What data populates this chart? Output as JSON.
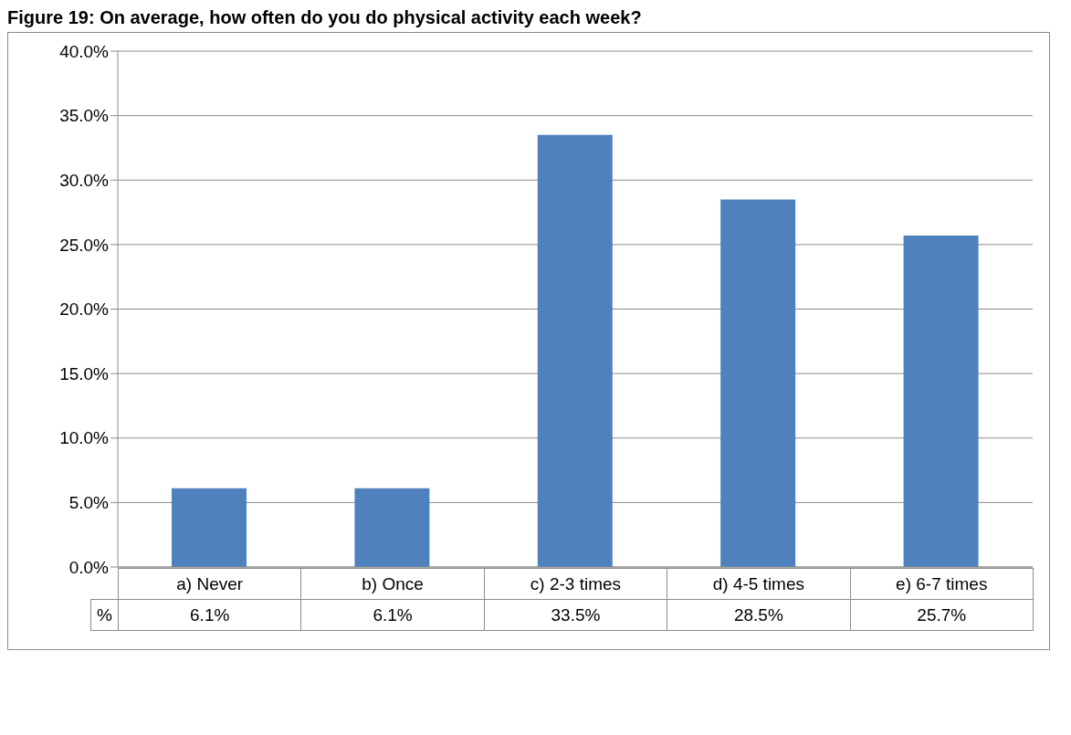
{
  "chart_data": {
    "type": "bar",
    "title": "Figure 19: On average, how often do you do physical activity each week?",
    "categories": [
      "a) Never",
      "b) Once",
      "c) 2-3 times",
      "d) 4-5 times",
      "e) 6-7 times"
    ],
    "series": [
      {
        "name": "%",
        "color": "#4f81bd",
        "values": [
          6.1,
          6.1,
          33.5,
          28.5,
          25.7
        ],
        "value_labels": [
          "6.1%",
          "6.1%",
          "33.5%",
          "28.5%",
          "25.7%"
        ]
      }
    ],
    "ylim": [
      0,
      40
    ],
    "yticks": [
      {
        "value": 0,
        "label": "0.0%"
      },
      {
        "value": 5,
        "label": "5.0%"
      },
      {
        "value": 10,
        "label": "10.0%"
      },
      {
        "value": 15,
        "label": "15.0%"
      },
      {
        "value": 20,
        "label": "20.0%"
      },
      {
        "value": 25,
        "label": "25.0%"
      },
      {
        "value": 30,
        "label": "30.0%"
      },
      {
        "value": 35,
        "label": "35.0%"
      },
      {
        "value": 40,
        "label": "40.0%"
      }
    ],
    "grid": "y"
  }
}
